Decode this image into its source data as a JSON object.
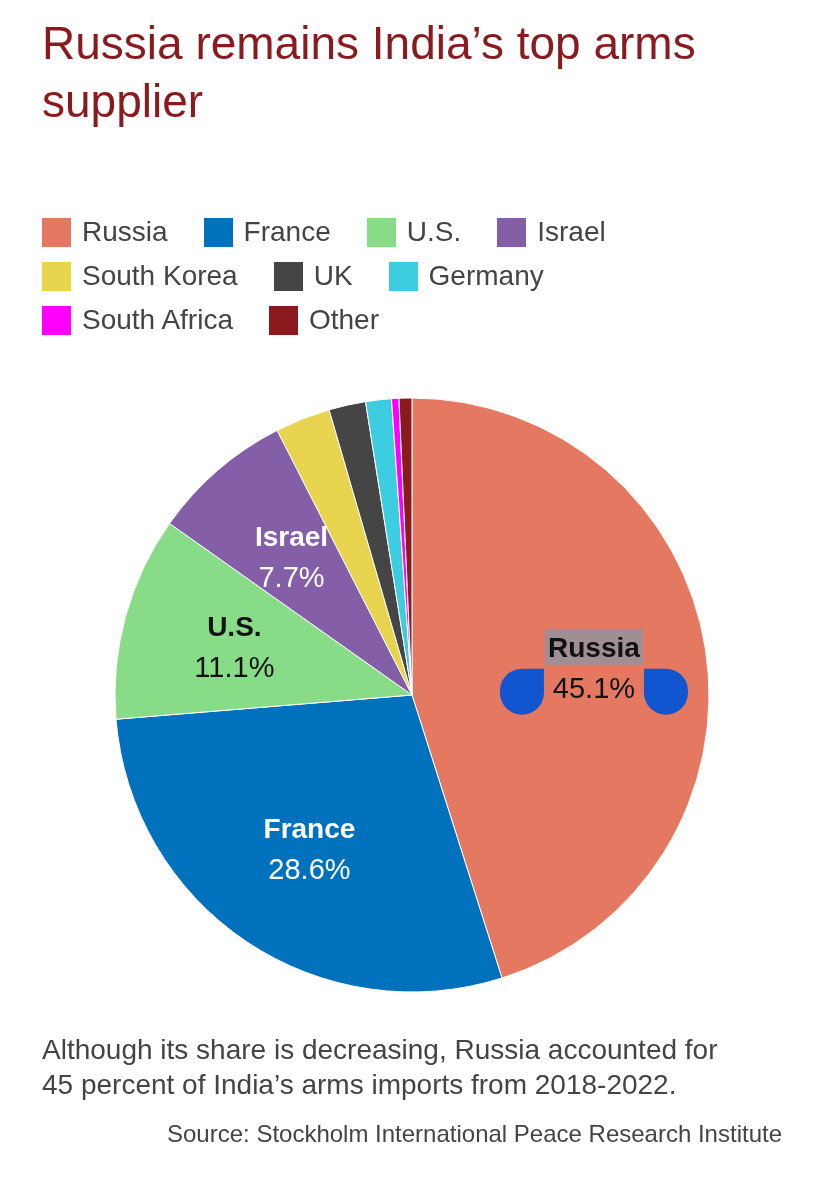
{
  "chart_data": {
    "type": "pie",
    "title": "Russia remains India’s top arms supplier",
    "categories": [
      "Russia",
      "France",
      "U.S.",
      "Israel",
      "South Korea",
      "UK",
      "Germany",
      "South Africa",
      "Other"
    ],
    "values": [
      45.1,
      28.6,
      11.1,
      7.7,
      3.0,
      2.0,
      1.4,
      0.4,
      0.7
    ],
    "colors": [
      "#e47861",
      "#0071bc",
      "#88dc88",
      "#845fa8",
      "#e8d44f",
      "#454545",
      "#3ccde0",
      "#ff00ff",
      "#8b1a1f"
    ],
    "value_labels": [
      "45.1%",
      "28.6%",
      "11.1%",
      "7.7%",
      null,
      null,
      null,
      null,
      null
    ],
    "legend": "top",
    "annotations": [
      "Although its share is decreasing, Russia accounted for 45 percent of India’s arms imports from 2018-2022.",
      "Source: Stockholm International Peace Research Institute"
    ]
  }
}
